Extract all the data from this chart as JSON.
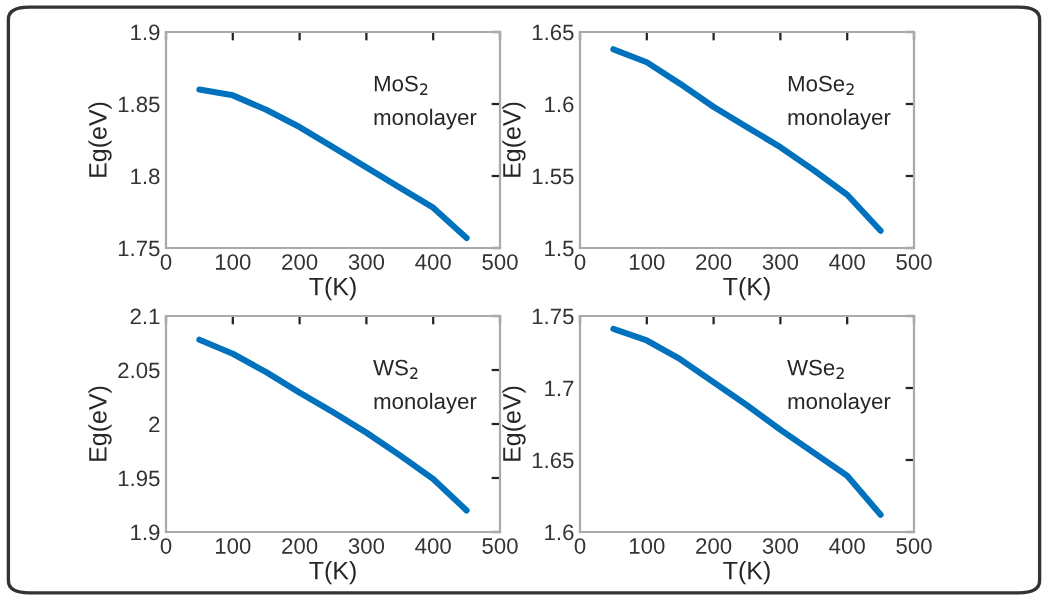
{
  "chart_data": [
    {
      "type": "line",
      "xlabel": "T(K)",
      "ylabel": "Eg(eV)",
      "annotations": [
        "MoS$_{2}$\nmonolayer"
      ],
      "xlim": [
        0,
        500
      ],
      "xticks": [
        0,
        100,
        200,
        300,
        400,
        500
      ],
      "ylim": [
        1.75,
        1.9
      ],
      "yticks": [
        1.75,
        1.8,
        1.85,
        1.9
      ],
      "grid": false,
      "legend": false,
      "marker": "none",
      "line_style": "solid",
      "x": [
        50,
        100,
        150,
        200,
        250,
        300,
        350,
        400,
        450
      ],
      "series": [
        {
          "color": "#0072bd",
          "values": [
            1.86,
            1.856,
            1.846,
            1.834,
            1.82,
            1.806,
            1.792,
            1.778,
            1.757
          ]
        }
      ]
    },
    {
      "type": "line",
      "xlabel": "T(K)",
      "ylabel": "Eg(eV)",
      "annotations": [
        "MoSe$_{2}$\nmonolayer"
      ],
      "xlim": [
        0,
        500
      ],
      "xticks": [
        0,
        100,
        200,
        300,
        400,
        500
      ],
      "ylim": [
        1.5,
        1.65
      ],
      "yticks": [
        1.5,
        1.55,
        1.6,
        1.65
      ],
      "grid": false,
      "legend": false,
      "marker": "none",
      "line_style": "solid",
      "x": [
        50,
        100,
        150,
        200,
        250,
        300,
        350,
        400,
        450
      ],
      "series": [
        {
          "color": "#0072bd",
          "values": [
            1.638,
            1.629,
            1.614,
            1.598,
            1.584,
            1.57,
            1.554,
            1.537,
            1.512
          ]
        }
      ]
    },
    {
      "type": "line",
      "xlabel": "T(K)",
      "ylabel": "Eg(eV)",
      "annotations": [
        "WS$_{2}$\nmonolayer"
      ],
      "xlim": [
        0,
        500
      ],
      "xticks": [
        0,
        100,
        200,
        300,
        400,
        500
      ],
      "ylim": [
        1.9,
        2.1
      ],
      "yticks": [
        1.9,
        1.95,
        2,
        2.05,
        2.1
      ],
      "grid": false,
      "legend": false,
      "marker": "none",
      "line_style": "solid",
      "x": [
        50,
        100,
        150,
        200,
        250,
        300,
        350,
        400,
        450
      ],
      "series": [
        {
          "color": "#0072bd",
          "values": [
            2.078,
            2.065,
            2.048,
            2.029,
            2.011,
            1.992,
            1.971,
            1.949,
            1.92
          ]
        }
      ]
    },
    {
      "type": "line",
      "xlabel": "T(K)",
      "ylabel": "Eg(eV)",
      "annotations": [
        "WSe$_{2}$\nmonolayer"
      ],
      "xlim": [
        0,
        500
      ],
      "xticks": [
        0,
        100,
        200,
        300,
        400,
        500
      ],
      "ylim": [
        1.6,
        1.75
      ],
      "yticks": [
        1.6,
        1.65,
        1.7,
        1.75
      ],
      "grid": false,
      "legend": false,
      "marker": "none",
      "line_style": "solid",
      "x": [
        50,
        100,
        150,
        200,
        250,
        300,
        350,
        400,
        450
      ],
      "series": [
        {
          "color": "#0072bd",
          "values": [
            1.741,
            1.733,
            1.72,
            1.704,
            1.688,
            1.671,
            1.655,
            1.639,
            1.612
          ]
        }
      ]
    }
  ]
}
